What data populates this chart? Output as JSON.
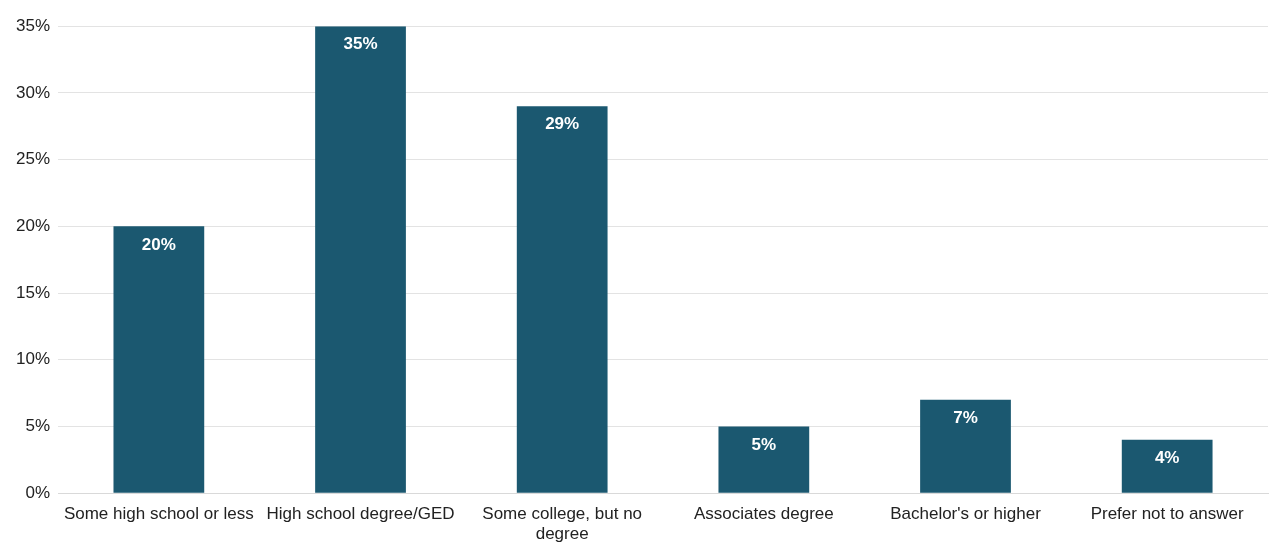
{
  "chart_data": {
    "type": "bar",
    "categories": [
      "Some high school or less",
      "High school degree/GED",
      "Some college, but no degree",
      "Associates degree",
      "Bachelor's or higher",
      "Prefer not to answer"
    ],
    "values": [
      20,
      35,
      29,
      5,
      7,
      4
    ],
    "color": "#1b5870",
    "ylim": [
      0,
      35
    ],
    "yticks": [
      {
        "value": 0,
        "label": "0%"
      },
      {
        "value": 5,
        "label": "5%"
      },
      {
        "value": 10,
        "label": "10%"
      },
      {
        "value": 15,
        "label": "15%"
      },
      {
        "value": 20,
        "label": "20%"
      },
      {
        "value": 25,
        "label": "25%"
      },
      {
        "value": 30,
        "label": "30%"
      },
      {
        "value": 35,
        "label": "35%"
      }
    ],
    "value_labels": [
      "20%",
      "35%",
      "29%",
      "5%",
      "7%",
      "4%"
    ],
    "grid": "y",
    "legend": false
  }
}
